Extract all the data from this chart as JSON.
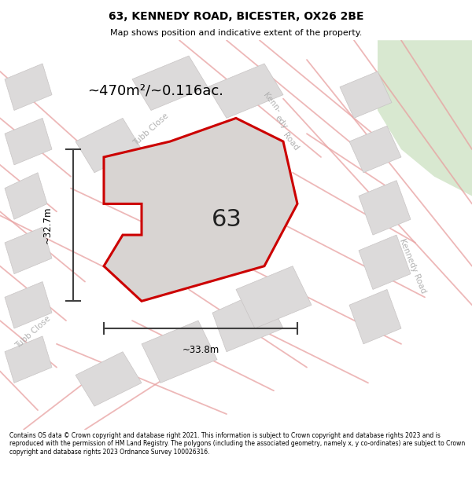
{
  "title": "63, KENNEDY ROAD, BICESTER, OX26 2BE",
  "subtitle": "Map shows position and indicative extent of the property.",
  "area_label": "~470m²/~0.116ac.",
  "number_label": "63",
  "dim_width": "~33.8m",
  "dim_height": "~32.7m",
  "footer": "Contains OS data © Crown copyright and database right 2021. This information is subject to Crown copyright and database rights 2023 and is reproduced with the permission of HM Land Registry. The polygons (including the associated geometry, namely x, y co-ordinates) are subject to Crown copyright and database rights 2023 Ordnance Survey 100026316.",
  "map_bg": "#f2f0f0",
  "road_color": "#e8a0a0",
  "block_color": "#dcdada",
  "block_edge": "#c8c4c4",
  "property_fill": "#d8d4d2",
  "property_edge": "#cc0000",
  "dim_line_color": "#404040",
  "street_label_color": "#aaaaaa",
  "green_corner": "#d8e8d0"
}
